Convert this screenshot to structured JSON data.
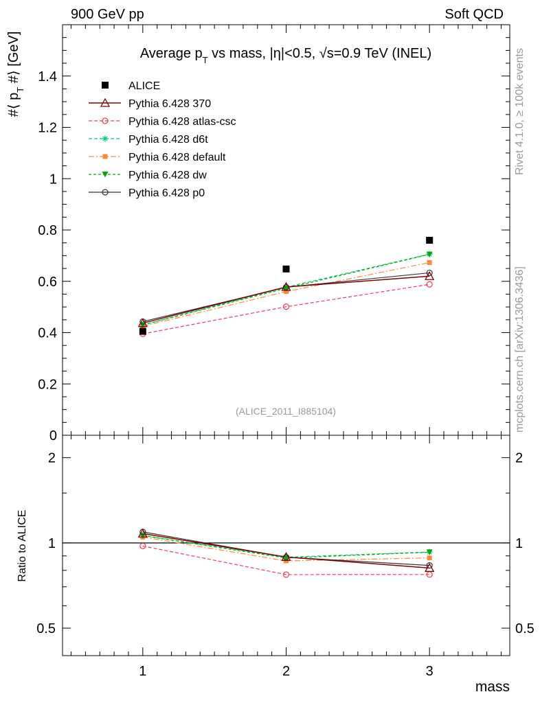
{
  "header": {
    "left": "900 GeV pp",
    "right": "Soft QCD"
  },
  "side_labels": {
    "version": "Rivet 4.1.0, ≥ 100k events",
    "source": "mcplots.cern.ch [arXiv:1306.3436]"
  },
  "chart_data": {
    "type": "scatter",
    "title": "Average p_T vs mass, |η|<0.5, √s=0.9 TeV (INEL)",
    "title_parts": {
      "pre": "Average p",
      "sub": "T",
      "post": " vs mass, |η|<0.5, √s=0.9 TeV (INEL)"
    },
    "ylabel": "#⟨ p_T #⟩ [GeV]",
    "ylabel_parts": {
      "pre": "#⟨ p",
      "sub": "T",
      "post": " #⟩ [GeV]"
    },
    "xlabel": "mass",
    "ratio_ylabel": "Ratio to ALICE",
    "watermark": "(ALICE_2011_I885104)",
    "x": [
      1,
      2,
      3
    ],
    "xlim": [
      0.44,
      3.56
    ],
    "ylim": [
      0,
      1.6
    ],
    "ratio_ylim": [
      0.4,
      2.4
    ],
    "xticks": [
      "1",
      "2",
      "3"
    ],
    "yticks": [
      "0",
      "0.2",
      "0.4",
      "0.6",
      "0.8",
      "1",
      "1.2",
      "1.4"
    ],
    "ratio_yticks": [
      "0.5",
      "1",
      "2"
    ],
    "reference": {
      "name": "ALICE",
      "values": [
        0.405,
        0.648,
        0.76
      ],
      "color": "#000000",
      "marker": "square"
    },
    "series": [
      {
        "name": "Pythia 6.428 370",
        "values": [
          0.437,
          0.578,
          0.62
        ],
        "color": "#800000",
        "dash": "",
        "marker": "triangle-open",
        "width": 1.5
      },
      {
        "name": "Pythia 6.428 atlas-csc",
        "values": [
          0.395,
          0.501,
          0.588
        ],
        "color": "#ff3355",
        "dash": "5,3",
        "marker": "circle-open",
        "width": 1.2
      },
      {
        "name": "Pythia 6.428 d6t",
        "values": [
          0.43,
          0.577,
          0.706
        ],
        "color": "#00cc77",
        "dash": "5,3",
        "marker": "asterisk",
        "width": 1.2
      },
      {
        "name": "Pythia 6.428 default",
        "values": [
          0.425,
          0.56,
          0.673
        ],
        "color": "#ff8833",
        "dash": "8,3,2,3",
        "marker": "square-filled",
        "width": 1.2
      },
      {
        "name": "Pythia 6.428 dw",
        "values": [
          0.43,
          0.573,
          0.705
        ],
        "color": "#00aa00",
        "dash": "4,3",
        "marker": "triangle-down",
        "width": 1.2
      },
      {
        "name": "Pythia 6.428 p0",
        "values": [
          0.443,
          0.577,
          0.633
        ],
        "color": "#333333",
        "dash": "",
        "marker": "circle-open",
        "width": 1.2
      }
    ]
  }
}
